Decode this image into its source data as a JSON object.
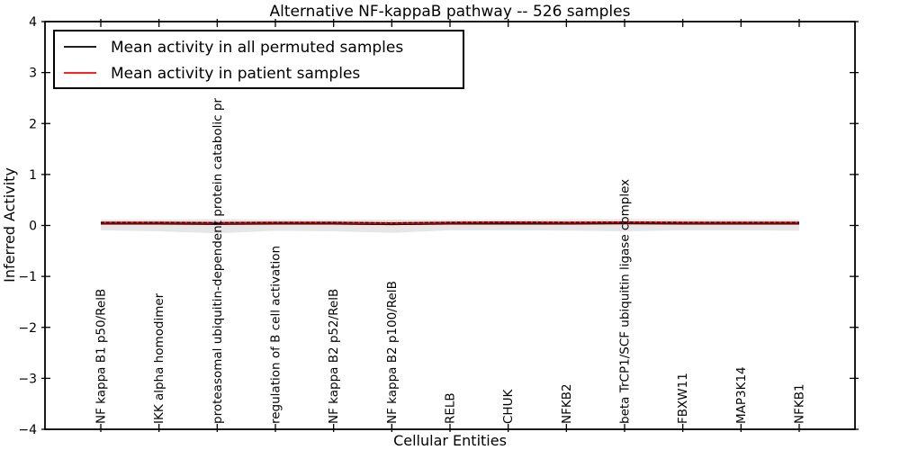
{
  "chart_data": {
    "type": "line",
    "title": "Alternative NF-kappaB pathway -- 526 samples",
    "xlabel": "Cellular Entities",
    "ylabel": "Inferred Activity",
    "ylim": [
      -4,
      4
    ],
    "y_ticks": [
      4,
      3,
      2,
      1,
      0,
      -1,
      -2,
      -3,
      -4
    ],
    "y_tick_labels": [
      "4",
      "3",
      "2",
      "1",
      "0",
      "−1",
      "−2",
      "−3",
      "−4"
    ],
    "grid": false,
    "legend_position": "upper left",
    "categories": [
      "NF kappa B1 p50/RelB",
      "IKK alpha homodimer",
      "proteasomal ubiquitin-dependent protein catabolic pr",
      "regulation of B cell activation",
      "NF kappa B2 p52/RelB",
      "NF kappa B2 p100/RelB",
      "RELB",
      "CHUK",
      "NFKB2",
      "beta TrCP1/SCF ubiquitin ligase complex",
      "FBXW11",
      "MAP3K14",
      "NFKB1"
    ],
    "legend": [
      {
        "label": "Mean activity in all permuted samples",
        "color": "#000000",
        "line_style": "solid"
      },
      {
        "label": "Mean activity in patient samples",
        "color": "#ff0000",
        "line_style": "solid"
      }
    ],
    "series": [
      {
        "name": "Mean activity in all permuted samples",
        "color": "#000000",
        "line_style": "solid",
        "width": 1.5,
        "values": [
          0.03,
          0.03,
          0.025,
          0.03,
          0.03,
          0.02,
          0.03,
          0.03,
          0.03,
          0.035,
          0.03,
          0.03,
          0.03
        ]
      },
      {
        "name": "Mean activity in patient samples",
        "color": "#ff0000",
        "line_style": "solid",
        "width": 2.2,
        "values": [
          0.055,
          0.055,
          0.05,
          0.055,
          0.055,
          0.045,
          0.055,
          0.06,
          0.055,
          0.06,
          0.055,
          0.055,
          0.055
        ]
      },
      {
        "name": "dashed overlay on patient mean",
        "color": "#000000",
        "line_style": "dashed",
        "width": 1.3,
        "values": [
          0.06,
          0.06,
          0.055,
          0.06,
          0.06,
          0.05,
          0.06,
          0.065,
          0.06,
          0.065,
          0.06,
          0.06,
          0.06
        ]
      }
    ],
    "band": {
      "name": "permuted samples spread band",
      "color": "#e6e6e6",
      "upper": [
        0.115,
        0.115,
        0.125,
        0.115,
        0.11,
        0.115,
        0.11,
        0.115,
        0.12,
        0.125,
        0.12,
        0.115,
        0.115
      ],
      "lower": [
        -0.095,
        -0.115,
        -0.155,
        -0.105,
        -0.115,
        -0.145,
        -0.095,
        -0.095,
        -0.1,
        -0.115,
        -0.095,
        -0.095,
        -0.105
      ]
    }
  }
}
